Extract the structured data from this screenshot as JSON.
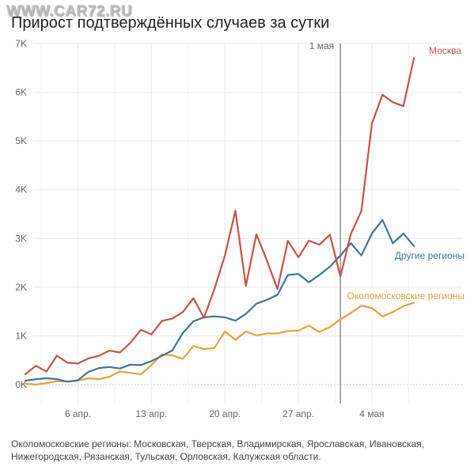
{
  "header": {
    "title": "Прирост подтверждённых случаев за сутки",
    "watermark": "WWW.CAR72.RU"
  },
  "footnote": "Околомосковские регионы: Московская, Тверская, Владимирская, Ярославская, Ивановская, Нижегородская, Рязанская, Тульская, Орловская, Калужская области.",
  "colors": {
    "moscow": "#c9514a",
    "other": "#41759c",
    "near": "#e8a23c",
    "grid": "#e8e8e8",
    "marker": "#777777"
  },
  "chart_data": {
    "type": "line",
    "title": "Прирост подтверждённых случаев за сутки",
    "xlabel": "",
    "ylabel": "",
    "x_range": [
      1,
      42
    ],
    "ylim": [
      -350,
      7000
    ],
    "y_ticks": [
      {
        "value": 0,
        "label": "0K"
      },
      {
        "value": 1000,
        "label": "1K"
      },
      {
        "value": 2000,
        "label": "2K"
      },
      {
        "value": 3000,
        "label": "3K"
      },
      {
        "value": 4000,
        "label": "4K"
      },
      {
        "value": 5000,
        "label": "5K"
      },
      {
        "value": 6000,
        "label": "6K"
      },
      {
        "value": 7000,
        "label": "7K"
      }
    ],
    "x_ticks": [
      {
        "day": 6,
        "label": "6 апр."
      },
      {
        "day": 13,
        "label": "13 апр."
      },
      {
        "day": 20,
        "label": "20 апр."
      },
      {
        "day": 27,
        "label": "27 апр."
      },
      {
        "day": 34,
        "label": "4 мая"
      }
    ],
    "x_unit": "day of April 2020 (31 = 1 May)",
    "marker": {
      "day": 31,
      "label": "1 мая"
    },
    "grid": true,
    "series": [
      {
        "name": "Москва",
        "color": "#c9514a",
        "x": [
          1,
          2,
          3,
          4,
          5,
          6,
          7,
          8,
          9,
          10,
          11,
          12,
          13,
          14,
          15,
          16,
          17,
          18,
          19,
          20,
          21,
          22,
          23,
          24,
          25,
          26,
          27,
          28,
          29,
          30,
          31,
          32,
          33,
          34,
          35,
          36,
          37,
          38
        ],
        "values": [
          212,
          387,
          267,
          595,
          448,
          434,
          536,
          591,
          697,
          660,
          857,
          1124,
          1030,
          1306,
          1355,
          1489,
          1774,
          1370,
          1959,
          2649,
          3570,
          2026,
          3083,
          2548,
          1959,
          2951,
          2612,
          2954,
          2871,
          3075,
          2220,
          3093,
          3561,
          5358,
          5948,
          5795,
          5714,
          6703
        ]
      },
      {
        "name": "Другие регионы",
        "color": "#41759c",
        "x": [
          1,
          2,
          3,
          4,
          5,
          6,
          7,
          8,
          9,
          10,
          11,
          12,
          13,
          14,
          15,
          16,
          17,
          18,
          19,
          20,
          21,
          22,
          23,
          24,
          25,
          26,
          27,
          28,
          29,
          30,
          31,
          32,
          33,
          34,
          35,
          36,
          37,
          38
        ],
        "values": [
          80,
          110,
          130,
          110,
          60,
          90,
          260,
          340,
          360,
          330,
          410,
          400,
          480,
          590,
          700,
          1060,
          1300,
          1380,
          1400,
          1380,
          1310,
          1450,
          1660,
          1740,
          1840,
          2250,
          2270,
          2100,
          2250,
          2420,
          2650,
          2900,
          2650,
          3100,
          3380,
          2900,
          3100,
          2840
        ]
      },
      {
        "name": "Околомосковские регионы",
        "color": "#e8a23c",
        "x": [
          1,
          2,
          3,
          4,
          5,
          6,
          7,
          8,
          9,
          10,
          11,
          12,
          13,
          14,
          15,
          16,
          17,
          18,
          19,
          20,
          21,
          22,
          23,
          24,
          25,
          26,
          27,
          28,
          29,
          30,
          31,
          32,
          33,
          34,
          35,
          36,
          37,
          38
        ],
        "values": [
          20,
          0,
          30,
          70,
          60,
          80,
          130,
          110,
          160,
          270,
          240,
          210,
          400,
          620,
          600,
          530,
          790,
          730,
          750,
          1090,
          920,
          1090,
          1010,
          1050,
          1050,
          1100,
          1110,
          1210,
          1080,
          1180,
          1340,
          1470,
          1620,
          1570,
          1400,
          1490,
          1610,
          1680
        ]
      }
    ],
    "series_labels_on_chart": [
      "Москва",
      "Другие регионы",
      "Околомосковские регионы"
    ]
  }
}
